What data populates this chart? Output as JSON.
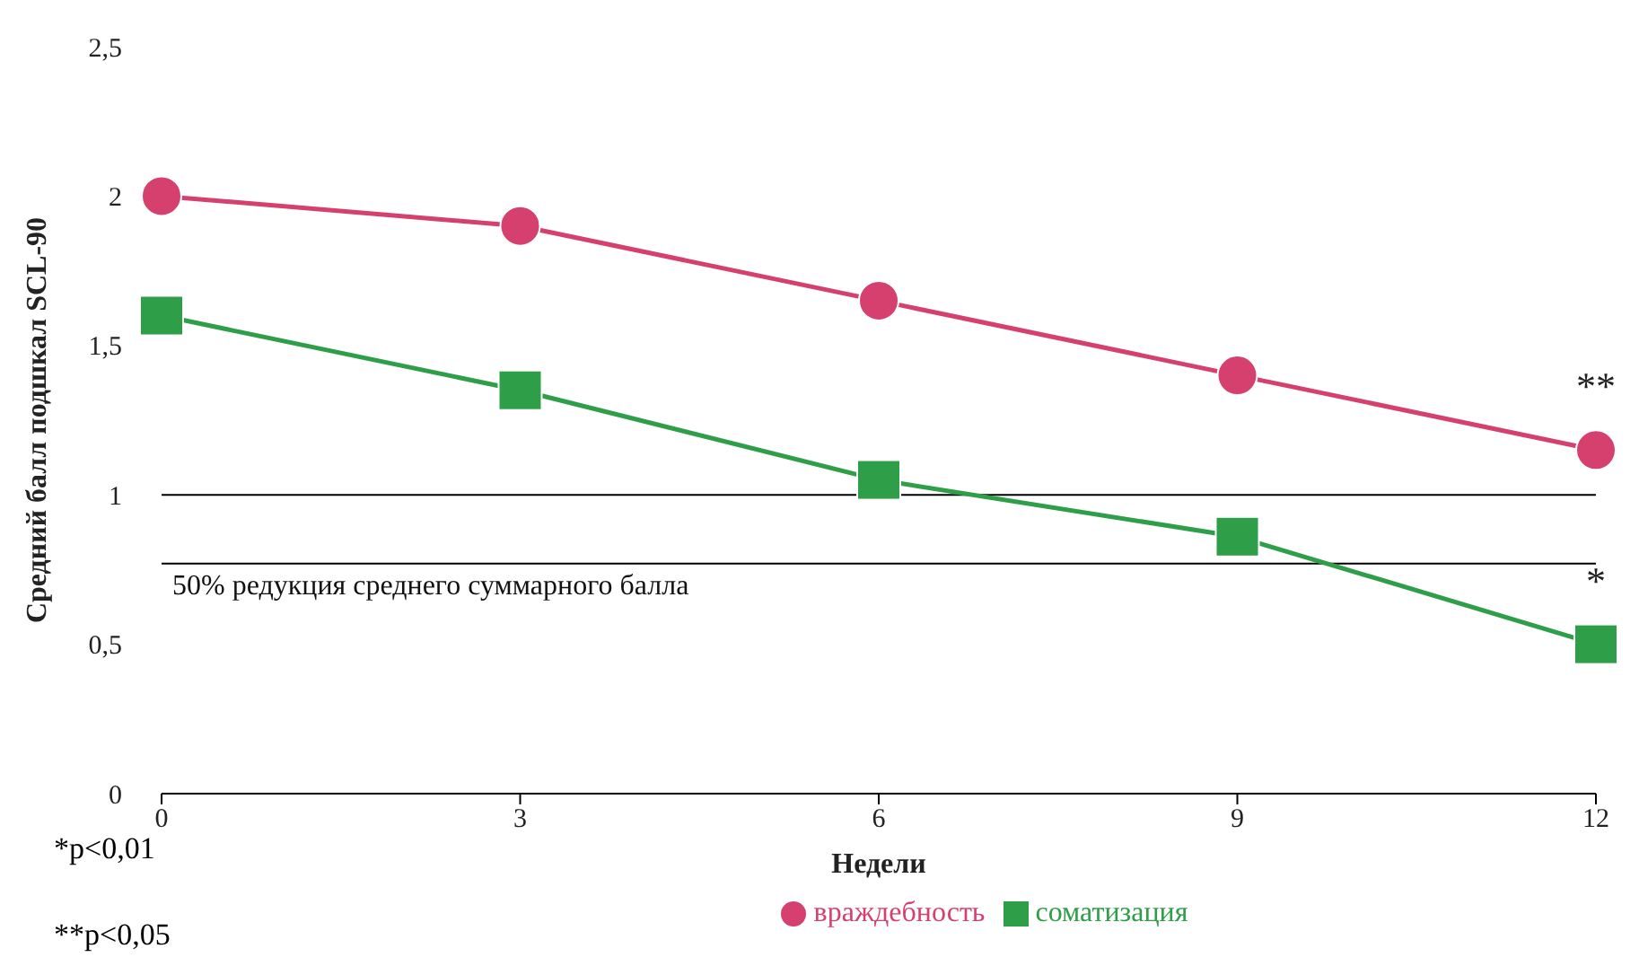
{
  "chart_data": {
    "type": "line",
    "ylabel": "Средний балл подшкал SCL-90",
    "xlabel": "Недели",
    "x": [
      0,
      3,
      6,
      9,
      12
    ],
    "xlim": [
      0,
      12
    ],
    "xticks": [
      0,
      3,
      6,
      9,
      12
    ],
    "ylim": [
      0,
      2.5
    ],
    "yticks": [
      0,
      {
        "value": 0.5,
        "label": "0,5"
      },
      1,
      {
        "value": 1.5,
        "label": "1,5"
      },
      2,
      {
        "value": 2.5,
        "label": "2,5"
      }
    ],
    "series": [
      {
        "name": "враждебность",
        "color": "#d6406e",
        "marker": "circle",
        "values": [
          2,
          1.9,
          1.65,
          1.4,
          1.15
        ]
      },
      {
        "name": "соматизация",
        "color": "#2e9e48",
        "marker": "square",
        "values": [
          1.6,
          1.35,
          1.05,
          0.86,
          0.5
        ]
      }
    ],
    "ref_lines": [
      {
        "axis": "y",
        "value": 1,
        "color": "#000000"
      },
      {
        "axis": "y",
        "value": 0.77,
        "label": "50% редукция среднего суммарного балла",
        "color": "#000000"
      }
    ],
    "annotations": [
      {
        "text": "**",
        "x": 12,
        "y": 1.15
      },
      {
        "text": "*",
        "x": 12,
        "y": 0.5
      },
      "*p<0,01",
      "**p<0,05"
    ],
    "grid": false,
    "legend": "bottom",
    "line_style": "solid"
  }
}
